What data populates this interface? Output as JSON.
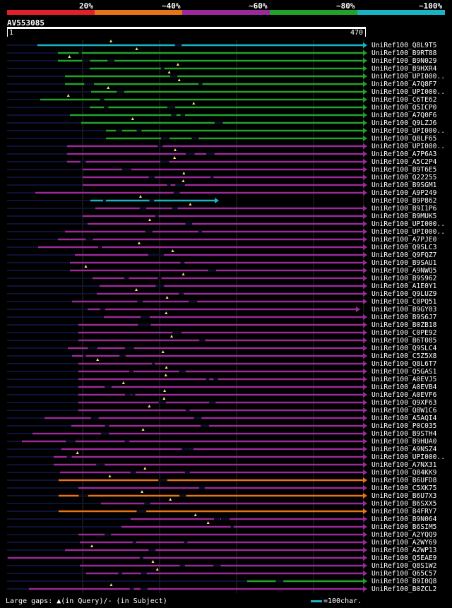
{
  "scale": {
    "labels": [
      "20%",
      "~40%",
      "~60%",
      "~80%",
      "~100%"
    ],
    "colors": [
      "#e0202a",
      "#e87415",
      "#9a2a99",
      "#22a22b",
      "#17b5c4"
    ]
  },
  "query": {
    "id": "AV553085",
    "start": "1",
    "end": "470",
    "length": 470
  },
  "hits": [
    {
      "name": "UniRef100_Q8L9T5",
      "color": "cyan",
      "start": 53,
      "end": 515
    },
    {
      "name": "UniRef100_B9RT88",
      "color": "green",
      "start": 82,
      "end": 515
    },
    {
      "name": "UniRef100_B9N029",
      "color": "green",
      "start": 82,
      "end": 515
    },
    {
      "name": "UniRef100_B9HXR4",
      "color": "green",
      "start": 127,
      "end": 515
    },
    {
      "name": "UniRef100_UPI000..",
      "color": "green",
      "start": 92,
      "end": 515
    },
    {
      "name": "UniRef100_A7Q8F7",
      "color": "green",
      "start": 92,
      "end": 515
    },
    {
      "name": "UniRef100_UPI000..",
      "color": "green",
      "start": 129,
      "end": 515
    },
    {
      "name": "UniRef100_C6TE62",
      "color": "green",
      "start": 57,
      "end": 515
    },
    {
      "name": "UniRef100_Q5ICP0",
      "color": "green",
      "start": 127,
      "end": 515
    },
    {
      "name": "UniRef100_A7Q0F6",
      "color": "green",
      "start": 99,
      "end": 515
    },
    {
      "name": "UniRef100_Q9LZJ6",
      "color": "green",
      "start": 115,
      "end": 515
    },
    {
      "name": "UniRef100_UPI000..",
      "color": "green",
      "start": 150,
      "end": 515
    },
    {
      "name": "UniRef100_Q8LF65",
      "color": "green",
      "start": 150,
      "end": 515
    },
    {
      "name": "UniRef100_UPI000..",
      "color": "purple",
      "start": 95,
      "end": 515
    },
    {
      "name": "UniRef100_A7P6A3",
      "color": "purple",
      "start": 95,
      "end": 515
    },
    {
      "name": "UniRef100_A5C2P4",
      "color": "purple",
      "start": 95,
      "end": 515
    },
    {
      "name": "UniRef100_B9T6E5",
      "color": "purple",
      "start": 117,
      "end": 515
    },
    {
      "name": "UniRef100_Q22255",
      "color": "purple",
      "start": 117,
      "end": 515
    },
    {
      "name": "UniRef100_B9SGM1",
      "color": "purple",
      "start": 117,
      "end": 515
    },
    {
      "name": "UniRef100_A9P249",
      "color": "purple",
      "start": 50,
      "end": 515
    },
    {
      "name": "UniRef100_B9P862",
      "color": "cyan",
      "start": 128,
      "end": 305
    },
    {
      "name": "UniRef100_B9I1P6",
      "color": "purple",
      "start": 135,
      "end": 515
    },
    {
      "name": "UniRef100_B9MUK5",
      "color": "purple",
      "start": 117,
      "end": 515
    },
    {
      "name": "UniRef100_UPI000..",
      "color": "purple",
      "start": 124,
      "end": 515
    },
    {
      "name": "UniRef100_UPI000..",
      "color": "purple",
      "start": 92,
      "end": 515
    },
    {
      "name": "UniRef100_A7PJE0",
      "color": "purple",
      "start": 82,
      "end": 515
    },
    {
      "name": "UniRef100_Q9SLC3",
      "color": "purple",
      "start": 54,
      "end": 515
    },
    {
      "name": "UniRef100_Q9FQZ7",
      "color": "purple",
      "start": 106,
      "end": 515
    },
    {
      "name": "UniRef100_B9SAU1",
      "color": "purple",
      "start": 99,
      "end": 515
    },
    {
      "name": "UniRef100_A9NWQ5",
      "color": "purple",
      "start": 99,
      "end": 515
    },
    {
      "name": "UniRef100_B9S962",
      "color": "purple",
      "start": 131,
      "end": 515
    },
    {
      "name": "UniRef100_A1E0Y1",
      "color": "purple",
      "start": 141,
      "end": 515
    },
    {
      "name": "UniRef100_Q9LUZ9",
      "color": "purple",
      "start": 137,
      "end": 515
    },
    {
      "name": "UniRef100_C0PQ51",
      "color": "purple",
      "start": 102,
      "end": 515
    },
    {
      "name": "UniRef100_B9GY03",
      "color": "purple",
      "start": 124,
      "end": 505
    },
    {
      "name": "UniRef100_B9S6J7",
      "color": "purple",
      "start": 147,
      "end": 515
    },
    {
      "name": "UniRef100_B0ZB18",
      "color": "purple",
      "start": 111,
      "end": 515
    },
    {
      "name": "UniRef100_C0PE92",
      "color": "purple",
      "start": 111,
      "end": 515
    },
    {
      "name": "UniRef100_B6T085",
      "color": "purple",
      "start": 111,
      "end": 515
    },
    {
      "name": "UniRef100_Q9SLC4",
      "color": "purple",
      "start": 96,
      "end": 515
    },
    {
      "name": "UniRef100_C5Z5X8",
      "color": "purple",
      "start": 102,
      "end": 515
    },
    {
      "name": "UniRef100_Q8L6T7",
      "color": "purple",
      "start": 111,
      "end": 515
    },
    {
      "name": "UniRef100_Q5GAS1",
      "color": "purple",
      "start": 111,
      "end": 515
    },
    {
      "name": "UniRef100_A0EVJ5",
      "color": "purple",
      "start": 111,
      "end": 515
    },
    {
      "name": "UniRef100_A0EVB4",
      "color": "purple",
      "start": 111,
      "end": 515
    },
    {
      "name": "UniRef100_A0EVF6",
      "color": "purple",
      "start": 111,
      "end": 515
    },
    {
      "name": "UniRef100_Q9XF63",
      "color": "purple",
      "start": 111,
      "end": 515
    },
    {
      "name": "UniRef100_Q8W1C6",
      "color": "purple",
      "start": 111,
      "end": 515
    },
    {
      "name": "UniRef100_A5AQI4",
      "color": "purple",
      "start": 63,
      "end": 515
    },
    {
      "name": "UniRef100_P0C035",
      "color": "purple",
      "start": 101,
      "end": 515
    },
    {
      "name": "UniRef100_B9STH4",
      "color": "purple",
      "start": 46,
      "end": 515
    },
    {
      "name": "UniRef100_B9HUA0",
      "color": "purple",
      "start": 31,
      "end": 515
    },
    {
      "name": "UniRef100_A9NSZ4",
      "color": "purple",
      "start": 87,
      "end": 515
    },
    {
      "name": "UniRef100_UPI000..",
      "color": "purple",
      "start": 76,
      "end": 515
    },
    {
      "name": "UniRef100_A7NX31",
      "color": "purple",
      "start": 76,
      "end": 515
    },
    {
      "name": "UniRef100_Q84KK9",
      "color": "purple",
      "start": 85,
      "end": 515
    },
    {
      "name": "UniRef100_B6UFD8",
      "color": "orange",
      "start": 83,
      "end": 515
    },
    {
      "name": "UniRef100_C5XK75",
      "color": "purple",
      "start": 111,
      "end": 515
    },
    {
      "name": "UniRef100_B6U7X3",
      "color": "orange",
      "start": 83,
      "end": 515
    },
    {
      "name": "UniRef100_B6SXX5",
      "color": "purple",
      "start": 143,
      "end": 515
    },
    {
      "name": "UniRef100_B4FRY7",
      "color": "orange",
      "start": 83,
      "end": 515
    },
    {
      "name": "UniRef100_B9N064",
      "color": "purple",
      "start": 185,
      "end": 515
    },
    {
      "name": "UniRef100_B6SIM5",
      "color": "purple",
      "start": 172,
      "end": 515
    },
    {
      "name": "UniRef100_A2YQQ9",
      "color": "purple",
      "start": 111,
      "end": 515
    },
    {
      "name": "UniRef100_A2WY69",
      "color": "purple",
      "start": 113,
      "end": 515
    },
    {
      "name": "UniRef100_A2WP13",
      "color": "purple",
      "start": 92,
      "end": 515
    },
    {
      "name": "UniRef100_Q5EAE9",
      "color": "purple",
      "start": 11,
      "end": 515
    },
    {
      "name": "UniRef100_Q8S1W2",
      "color": "purple",
      "start": 113,
      "end": 515
    },
    {
      "name": "UniRef100_Q65C57",
      "color": "purple",
      "start": 122,
      "end": 515
    },
    {
      "name": "UniRef100_B9I0Q8",
      "color": "green",
      "start": 350,
      "end": 515
    },
    {
      "name": "UniRef100_B0ZCL2",
      "color": "purple",
      "start": 41,
      "end": 515
    }
  ],
  "footer": {
    "text": "Large gaps: ▲(in Query)/- (in Subject)"
  },
  "legend": {
    "text": "=100char."
  }
}
